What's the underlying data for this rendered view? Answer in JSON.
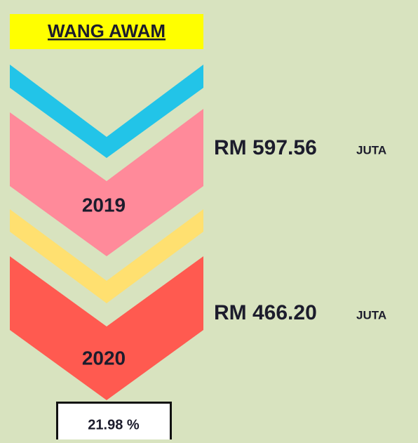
{
  "title": "WANG AWAM",
  "years": [
    {
      "year": "2019",
      "amount": "RM 597.56",
      "unit": "JUTA"
    },
    {
      "year": "2020",
      "amount": "RM 466.20",
      "unit": "JUTA"
    }
  ],
  "change": "21.98 %"
}
